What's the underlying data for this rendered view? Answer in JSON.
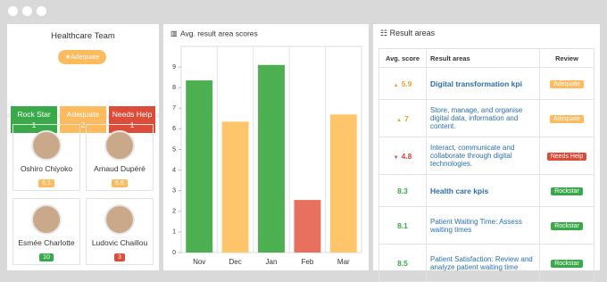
{
  "team": {
    "title": "Healthcare Team",
    "status": "Adequate",
    "groups": [
      {
        "label": "Rock Star",
        "count": 1,
        "color": "#3aa94a"
      },
      {
        "label": "Adequate",
        "count": 2,
        "color": "#fdbb5e"
      },
      {
        "label": "Needs Help",
        "count": 1,
        "color": "#dd4b39"
      }
    ],
    "members": [
      {
        "name": "Oshiro Chiyoko",
        "score": 6.1,
        "color": "#fdbb5e"
      },
      {
        "name": "Arnaud Dupéré",
        "score": 6.6,
        "color": "#fdbb5e"
      },
      {
        "name": "Esmée Charlotte",
        "score": 10,
        "color": "#3aa94a"
      },
      {
        "name": "Ludovic Chaillou",
        "score": 3,
        "color": "#dd4b39"
      }
    ]
  },
  "chart_data": {
    "type": "bar",
    "title": "Avg. result area scores",
    "categories": [
      "Nov",
      "Dec",
      "Jan",
      "Feb",
      "Mar"
    ],
    "values": [
      8.35,
      6.35,
      9.1,
      2.55,
      6.7
    ],
    "colors": [
      "#4caf50",
      "#ffc56b",
      "#4caf50",
      "#e8705f",
      "#ffc56b"
    ],
    "ylim": [
      0,
      10
    ],
    "yticks": [
      0,
      1,
      2,
      3,
      4,
      5,
      6,
      7,
      8,
      9
    ]
  },
  "results": {
    "title": "Result areas",
    "columns": [
      "Avg. score",
      "Result areas",
      "Review"
    ],
    "rows": [
      {
        "trend": "up",
        "score": 5.9,
        "score_color": "#f0a030",
        "area": "Digital transformation kpi",
        "bold": true,
        "review": "Adequate",
        "review_color": "#fdbb5e"
      },
      {
        "trend": "up",
        "score": 7,
        "score_color": "#f0a030",
        "area": "Store, manage, and organise digital data, information and content.",
        "bold": false,
        "review": "Adequate",
        "review_color": "#fdbb5e"
      },
      {
        "trend": "down",
        "score": 4.8,
        "score_color": "#d9443a",
        "area": "Interact, communicate and collaborate through digital technologies.",
        "bold": false,
        "review": "Needs Help",
        "review_color": "#dd4b39"
      },
      {
        "trend": "none",
        "score": 8.3,
        "score_color": "#3aa94a",
        "area": "Health care kpis",
        "bold": true,
        "review": "Rockstar",
        "review_color": "#3aa94a"
      },
      {
        "trend": "none",
        "score": 8.1,
        "score_color": "#3aa94a",
        "area": "Patient Waiting Time: Assess waiting times",
        "bold": false,
        "review": "Rockstar",
        "review_color": "#3aa94a"
      },
      {
        "trend": "none",
        "score": 8.5,
        "score_color": "#3aa94a",
        "area": "Patient Satisfaction: Review and analyze patient waiting time",
        "bold": false,
        "review": "Rockstar",
        "review_color": "#3aa94a"
      }
    ]
  }
}
